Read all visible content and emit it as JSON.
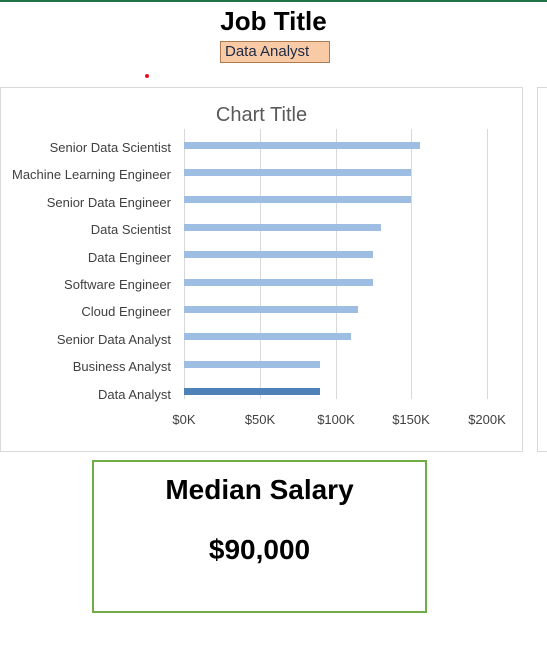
{
  "header": {
    "title": "Job Title",
    "selected_job": "Data Analyst"
  },
  "chart_data": {
    "type": "bar",
    "orientation": "horizontal",
    "title": "Chart Title",
    "xlabel": "",
    "ylabel": "",
    "xlim": [
      0,
      200000
    ],
    "ticks": [
      0,
      50000,
      100000,
      150000,
      200000
    ],
    "tick_labels": [
      "$0K",
      "$50K",
      "$100K",
      "$150K",
      "$200K"
    ],
    "categories": [
      "Senior Data Scientist",
      "Machine Learning Engineer",
      "Senior Data Engineer",
      "Data Scientist",
      "Data Engineer",
      "Software Engineer",
      "Cloud Engineer",
      "Senior Data Analyst",
      "Business Analyst",
      "Data Analyst"
    ],
    "values": [
      155500,
      150000,
      150000,
      130000,
      125000,
      124500,
      115000,
      110000,
      89500,
      90000
    ],
    "highlight": "Data Analyst",
    "colors": {
      "bar": "#9dbde2",
      "highlight": "#4e81b8",
      "grid": "#d9d9d9"
    }
  },
  "summary": {
    "label": "Median Salary",
    "value": "$90,000"
  }
}
